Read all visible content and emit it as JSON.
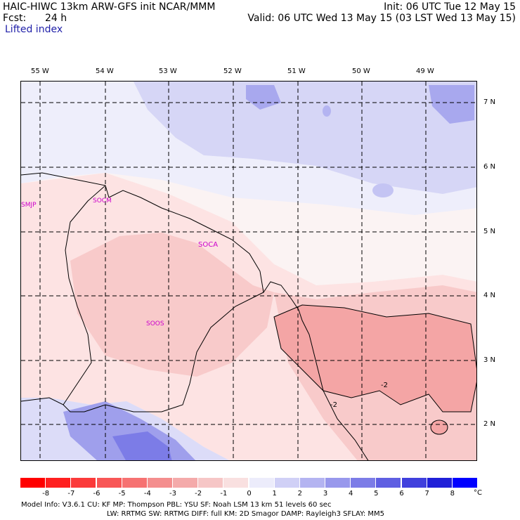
{
  "header": {
    "model_line": "HAIC-HIWC 13km ARW-GFS init   NCAR/MMM",
    "fcst_label": "Fcst:",
    "fcst_value": "24 h",
    "field": "Lifted index",
    "init": "Init: 06 UTC Tue 12 May 15",
    "valid": "Valid: 06 UTC Wed 13 May 15 (03 LST Wed 13 May 15)"
  },
  "map": {
    "lon_labels": [
      "55 W",
      "54 W",
      "53 W",
      "52 W",
      "51 W",
      "50 W",
      "49 W"
    ],
    "lat_labels": [
      "7 N",
      "6 N",
      "5 N",
      "4 N",
      "3 N",
      "2 N"
    ],
    "stations": [
      "SMJP",
      "SOCM",
      "SOCA",
      "SOOS"
    ],
    "contour_labels": [
      "-2",
      "-2"
    ],
    "colors": {
      "unstable_light": "#fde8e8",
      "unstable_med": "#f9c9c9",
      "unstable_strong": "#f4a3a3",
      "stable_light": "#e9e9fb",
      "stable_med": "#c4c4f3",
      "stable_strong": "#8f8fe6",
      "coast": "#000000",
      "grid": "#000000",
      "station": "#cc00cc"
    }
  },
  "colorbar": {
    "ticks": [
      "-8",
      "-7",
      "-6",
      "-5",
      "-4",
      "-3",
      "-2",
      "-1",
      "0",
      "1",
      "2",
      "3",
      "4",
      "5",
      "6",
      "7",
      "8"
    ],
    "unit": "°C",
    "colors": [
      "#ff0000",
      "#ff2020",
      "#fb3a3a",
      "#f85656",
      "#f67272",
      "#f48e8e",
      "#f4aaaa",
      "#f6c6c6",
      "#f9e0e0",
      "#ececfb",
      "#d0d0f6",
      "#b4b4f1",
      "#9898ec",
      "#7c7ce7",
      "#5f5fe2",
      "#4040dd",
      "#2020d8",
      "#0000ff"
    ]
  },
  "model_info": {
    "line1": "Model Info: V3.6.1    CU: KF       MP: Thompson    PBL: YSU       SF: Noah LSM     13 km    51 levels   60 sec",
    "line2": "LW: RRTMG    SW: RRTMG   DIFF: full    KM: 2D Smagor DAMP: Rayleigh3   SFLAY: MM5"
  }
}
